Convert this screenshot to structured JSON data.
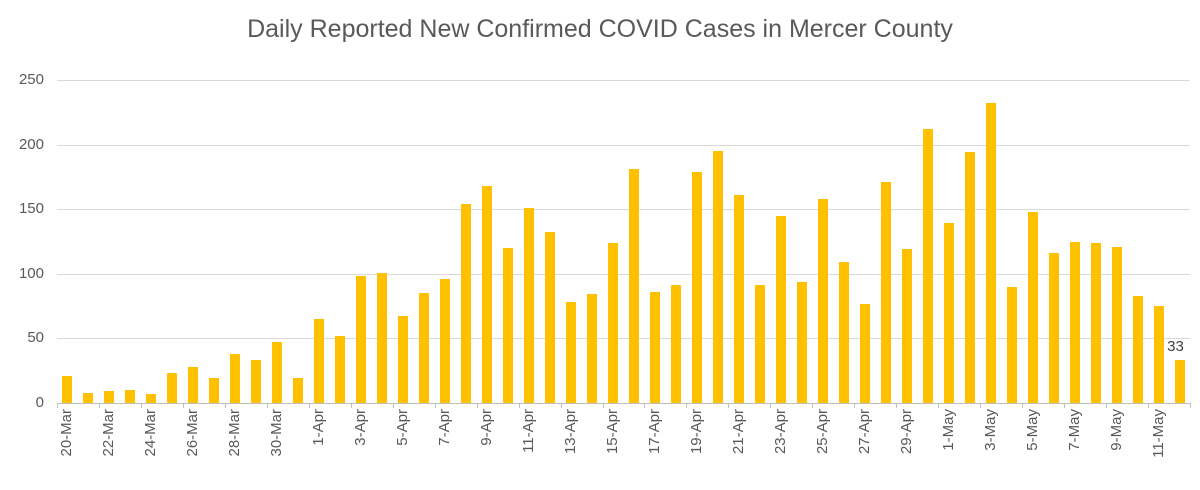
{
  "chart_data": {
    "type": "bar",
    "title": "Daily Reported New Confirmed COVID Cases in Mercer County",
    "xlabel": "",
    "ylabel": "",
    "ylim": [
      0,
      250
    ],
    "yticks": [
      0,
      50,
      100,
      150,
      200,
      250
    ],
    "grid": "horizontal",
    "legend": "none",
    "x_label_interval": 2,
    "categories": [
      "20-Mar",
      "21-Mar",
      "22-Mar",
      "23-Mar",
      "24-Mar",
      "25-Mar",
      "26-Mar",
      "27-Mar",
      "28-Mar",
      "29-Mar",
      "30-Mar",
      "31-Mar",
      "1-Apr",
      "2-Apr",
      "3-Apr",
      "4-Apr",
      "5-Apr",
      "6-Apr",
      "7-Apr",
      "8-Apr",
      "9-Apr",
      "10-Apr",
      "11-Apr",
      "12-Apr",
      "13-Apr",
      "14-Apr",
      "15-Apr",
      "16-Apr",
      "17-Apr",
      "18-Apr",
      "19-Apr",
      "20-Apr",
      "21-Apr",
      "22-Apr",
      "23-Apr",
      "24-Apr",
      "25-Apr",
      "26-Apr",
      "27-Apr",
      "28-Apr",
      "29-Apr",
      "30-Apr",
      "1-May",
      "2-May",
      "3-May",
      "4-May",
      "5-May",
      "6-May",
      "7-May",
      "8-May",
      "9-May",
      "10-May",
      "11-May",
      "12-May"
    ],
    "values": [
      21,
      8,
      9,
      10,
      7,
      23,
      28,
      19,
      38,
      33,
      47,
      19,
      65,
      52,
      98,
      101,
      67,
      85,
      96,
      154,
      168,
      120,
      151,
      132,
      78,
      84,
      124,
      181,
      86,
      91,
      179,
      195,
      161,
      91,
      145,
      94,
      158,
      109,
      77,
      171,
      119,
      212,
      139,
      194,
      232,
      90,
      148,
      116,
      125,
      124,
      121,
      83,
      75,
      33
    ],
    "data_labels": {
      "last_bar_label": "33"
    }
  },
  "colors": {
    "bar": "#ffc000",
    "gridline": "#d9d9d9",
    "axis_line": "#bfbfbf",
    "axis_text": "#595959",
    "title_text": "#595959",
    "data_label_text": "#404040",
    "background": "#ffffff"
  }
}
